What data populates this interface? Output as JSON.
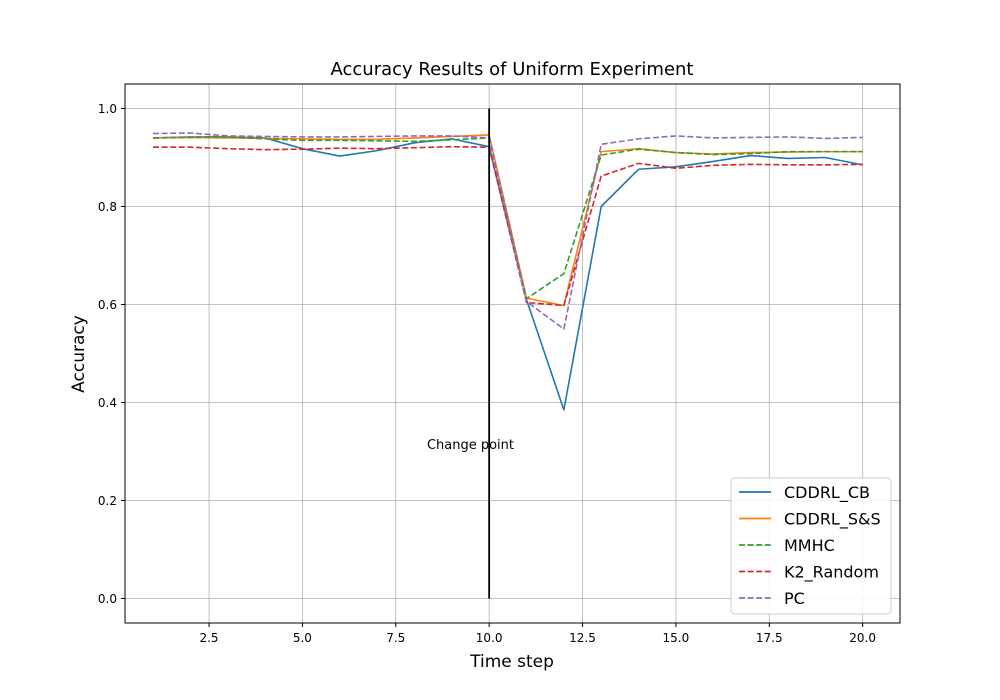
{
  "chart_data": {
    "type": "line",
    "title": "Accuracy Results of Uniform Experiment",
    "xlabel": "Time step",
    "ylabel": "Accuracy",
    "xlim": [
      0.25,
      21.0
    ],
    "ylim": [
      -0.05,
      1.05
    ],
    "xticks": [
      2.5,
      5.0,
      7.5,
      10.0,
      12.5,
      15.0,
      17.5,
      20.0
    ],
    "xtick_labels": [
      "2.5",
      "5.0",
      "7.5",
      "10.0",
      "12.5",
      "15.0",
      "17.5",
      "20.0"
    ],
    "yticks": [
      0.0,
      0.2,
      0.4,
      0.6,
      0.8,
      1.0
    ],
    "ytick_labels": [
      "0.0",
      "0.2",
      "0.4",
      "0.6",
      "0.8",
      "1.0"
    ],
    "grid": true,
    "legend_position": "lower-right",
    "x": [
      1,
      2,
      3,
      4,
      5,
      6,
      7,
      8,
      9,
      10,
      11,
      12,
      13,
      14,
      15,
      16,
      17,
      18,
      19,
      20
    ],
    "series": [
      {
        "name": "CDDRL_CB",
        "color": "#1f77b4",
        "dashed": false,
        "values": [
          0.94,
          0.942,
          0.942,
          0.94,
          0.918,
          0.903,
          0.914,
          0.93,
          0.938,
          0.922,
          0.61,
          0.385,
          0.8,
          0.876,
          0.881,
          0.892,
          0.904,
          0.898,
          0.9,
          0.885
        ]
      },
      {
        "name": "CDDRL_S&S",
        "color": "#ff7f0e",
        "dashed": false,
        "values": [
          0.94,
          0.941,
          0.94,
          0.939,
          0.938,
          0.937,
          0.937,
          0.94,
          0.943,
          0.946,
          0.613,
          0.598,
          0.912,
          0.918,
          0.91,
          0.907,
          0.91,
          0.911,
          0.912,
          0.912
        ]
      },
      {
        "name": "MMHC",
        "color": "#2ca02c",
        "dashed": true,
        "values": [
          0.94,
          0.941,
          0.942,
          0.938,
          0.935,
          0.935,
          0.934,
          0.933,
          0.936,
          0.94,
          0.612,
          0.663,
          0.905,
          0.917,
          0.91,
          0.906,
          0.908,
          0.912,
          0.912,
          0.912
        ]
      },
      {
        "name": "K2_Random",
        "color": "#d62728",
        "dashed": true,
        "values": [
          0.921,
          0.921,
          0.918,
          0.916,
          0.917,
          0.919,
          0.918,
          0.92,
          0.922,
          0.921,
          0.604,
          0.598,
          0.862,
          0.888,
          0.878,
          0.884,
          0.886,
          0.885,
          0.885,
          0.886
        ]
      },
      {
        "name": "PC",
        "color": "#9467bd",
        "dashed": true,
        "values": [
          0.949,
          0.95,
          0.944,
          0.943,
          0.942,
          0.942,
          0.943,
          0.944,
          0.944,
          0.94,
          0.606,
          0.55,
          0.927,
          0.938,
          0.944,
          0.94,
          0.941,
          0.942,
          0.939,
          0.941
        ]
      }
    ],
    "annotation": {
      "text": "Change point",
      "x": 9.5,
      "y": 0.305
    },
    "vline": {
      "x": 10,
      "y0": 0.0,
      "y1": 1.0,
      "color": "#000000"
    }
  }
}
